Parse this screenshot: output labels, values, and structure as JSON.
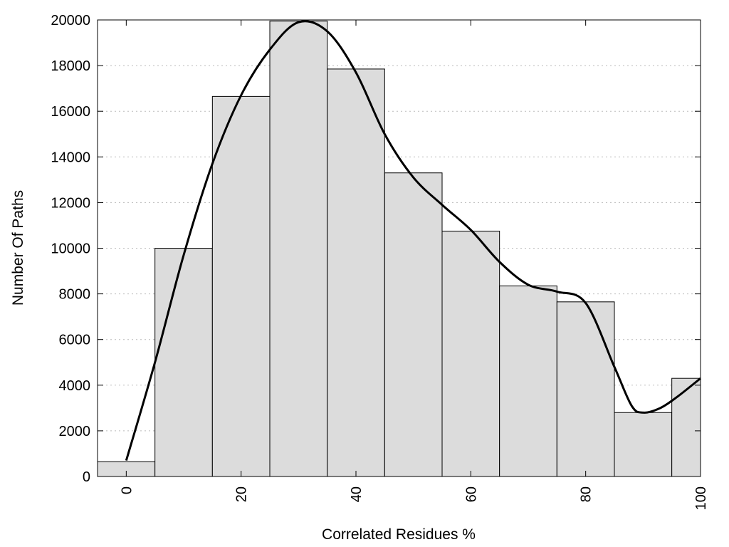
{
  "chart_data": {
    "type": "bar",
    "xlabel": "Correlated Residues %",
    "ylabel": "Number Of Paths",
    "xlim": [
      -5,
      100
    ],
    "ylim": [
      0,
      20000
    ],
    "grid": true,
    "bar_color": "#dcdcdc",
    "x_ticks": [
      0,
      20,
      40,
      60,
      80,
      100
    ],
    "y_ticks": [
      0,
      2000,
      4000,
      6000,
      8000,
      10000,
      12000,
      14000,
      16000,
      18000,
      20000
    ],
    "bins": [
      {
        "from": -5,
        "to": 5,
        "value": 650
      },
      {
        "from": 5,
        "to": 15,
        "value": 10000
      },
      {
        "from": 15,
        "to": 25,
        "value": 16650
      },
      {
        "from": 25,
        "to": 35,
        "value": 19950
      },
      {
        "from": 35,
        "to": 45,
        "value": 17850
      },
      {
        "from": 45,
        "to": 55,
        "value": 13300
      },
      {
        "from": 55,
        "to": 65,
        "value": 10750
      },
      {
        "from": 65,
        "to": 75,
        "value": 8350
      },
      {
        "from": 75,
        "to": 85,
        "value": 7650
      },
      {
        "from": 85,
        "to": 95,
        "value": 2800
      },
      {
        "from": 95,
        "to": 100,
        "value": 4300
      }
    ],
    "curve": {
      "x": [
        0,
        5,
        10,
        15,
        20,
        25,
        30,
        35,
        40,
        45,
        50,
        55,
        60,
        65,
        70,
        75,
        80,
        85,
        88,
        90,
        93,
        96,
        100
      ],
      "y": [
        700,
        5000,
        9700,
        13700,
        16700,
        18700,
        19900,
        19500,
        17700,
        15000,
        13100,
        11900,
        10800,
        9400,
        8400,
        8100,
        7600,
        4800,
        3100,
        2800,
        3000,
        3500,
        4300
      ]
    }
  }
}
